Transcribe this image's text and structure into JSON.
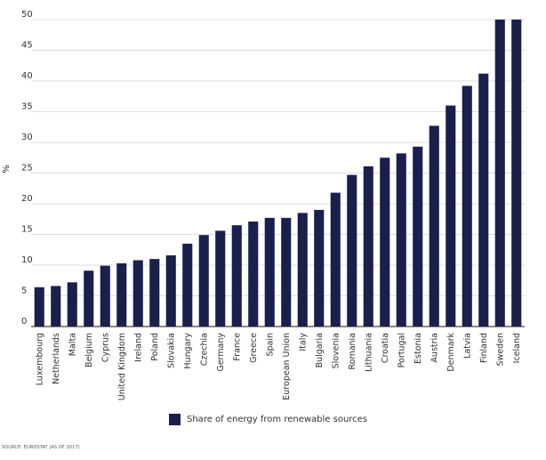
{
  "chart_data": {
    "type": "bar",
    "ylabel": "%",
    "ylim": [
      0,
      50
    ],
    "yticks": [
      0,
      5,
      10,
      15,
      20,
      25,
      30,
      35,
      40,
      45,
      50
    ],
    "grid": true,
    "bar_color": "#1b1f4b",
    "categories": [
      "Luxembourg",
      "Netherlands",
      "Malta",
      "Belgium",
      "Cyprus",
      "United Kingdom",
      "Ireland",
      "Poland",
      "Slovakia",
      "Hungary",
      "Czechia",
      "Germany",
      "France",
      "Greece",
      "Spain",
      "European Union",
      "Italy",
      "Bulgaria",
      "Slovenia",
      "Romania",
      "Lithuania",
      "Croatia",
      "Portugal",
      "Estonia",
      "Austria",
      "Denmark",
      "Latvia",
      "Finland",
      "Sweden",
      "Iceland"
    ],
    "series": [
      {
        "name": "Share of energy from renewable sources",
        "values": [
          6.4,
          6.6,
          7.2,
          9.1,
          9.9,
          10.3,
          10.8,
          11.0,
          11.6,
          13.5,
          14.9,
          15.6,
          16.5,
          17.1,
          17.7,
          17.7,
          18.5,
          19.0,
          21.8,
          24.7,
          26.1,
          27.5,
          28.2,
          29.3,
          32.7,
          36.0,
          39.2,
          41.2,
          50.0,
          50.0
        ]
      }
    ],
    "legend": "bottom"
  },
  "legend_label": "Share of energy from renewable sources",
  "source": "SOURCE: EUROSTAT (AS OF 2017)"
}
